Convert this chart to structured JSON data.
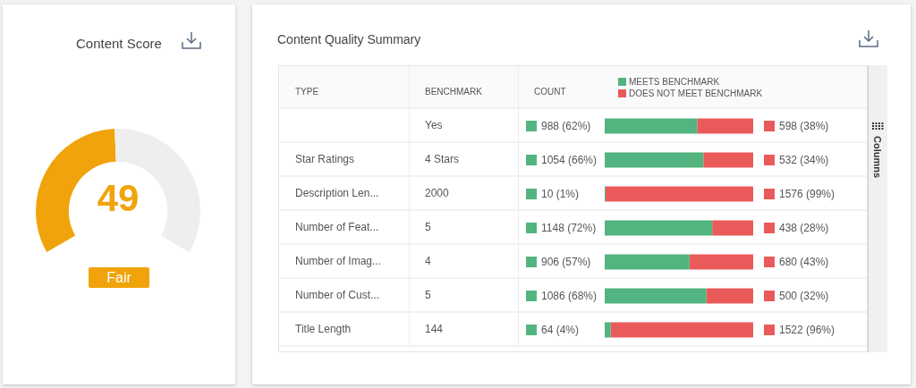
{
  "chart_data": [
    {
      "type": "donut",
      "title": "Content Score",
      "categories": [
        null,
        null
      ],
      "values": [
        49,
        51
      ],
      "colors": [
        "#f0a30a",
        "#eeeeee"
      ],
      "value_labels": [
        "49",
        null
      ],
      "annotations": [
        "Fair"
      ]
    },
    {
      "type": "bar",
      "orientation": "horizontal",
      "stacked": true,
      "title": "Content Quality Summary",
      "xlabel": "COUNT",
      "ylabel": "TYPE",
      "y2label": "BENCHMARK",
      "categories": [
        null,
        "Star Ratings",
        "Description Len...",
        "Number of Feat...",
        "Number of Imag...",
        "Number of Cust...",
        "Title Length"
      ],
      "y2_categories": [
        "Yes",
        "4 Stars",
        "2000",
        "5",
        "4",
        "5",
        "144"
      ],
      "series": [
        {
          "name": "MEETS BENCHMARK",
          "color": "#52b47f",
          "values": [
            988,
            1054,
            10,
            1148,
            906,
            1086,
            64
          ],
          "value_labels": [
            "988 (62%)",
            "1054 (66%)",
            "10 (1%)",
            "1148 (72%)",
            "906 (57%)",
            "1086 (68%)",
            "64 (4%)"
          ]
        },
        {
          "name": "DOES NOT MEET BENCHMARK",
          "color": "#eb5a5a",
          "values": [
            598,
            532,
            1576,
            438,
            680,
            500,
            1522
          ],
          "value_labels": [
            "598 (38%)",
            "532 (34%)",
            "1576 (99%)",
            "438 (28%)",
            "680 (43%)",
            "500 (32%)",
            "1522 (96%)"
          ]
        }
      ],
      "xlim": [
        0,
        1586
      ],
      "tick_labels": "y",
      "legend": "top",
      "annotations": [
        "Columns"
      ]
    }
  ]
}
